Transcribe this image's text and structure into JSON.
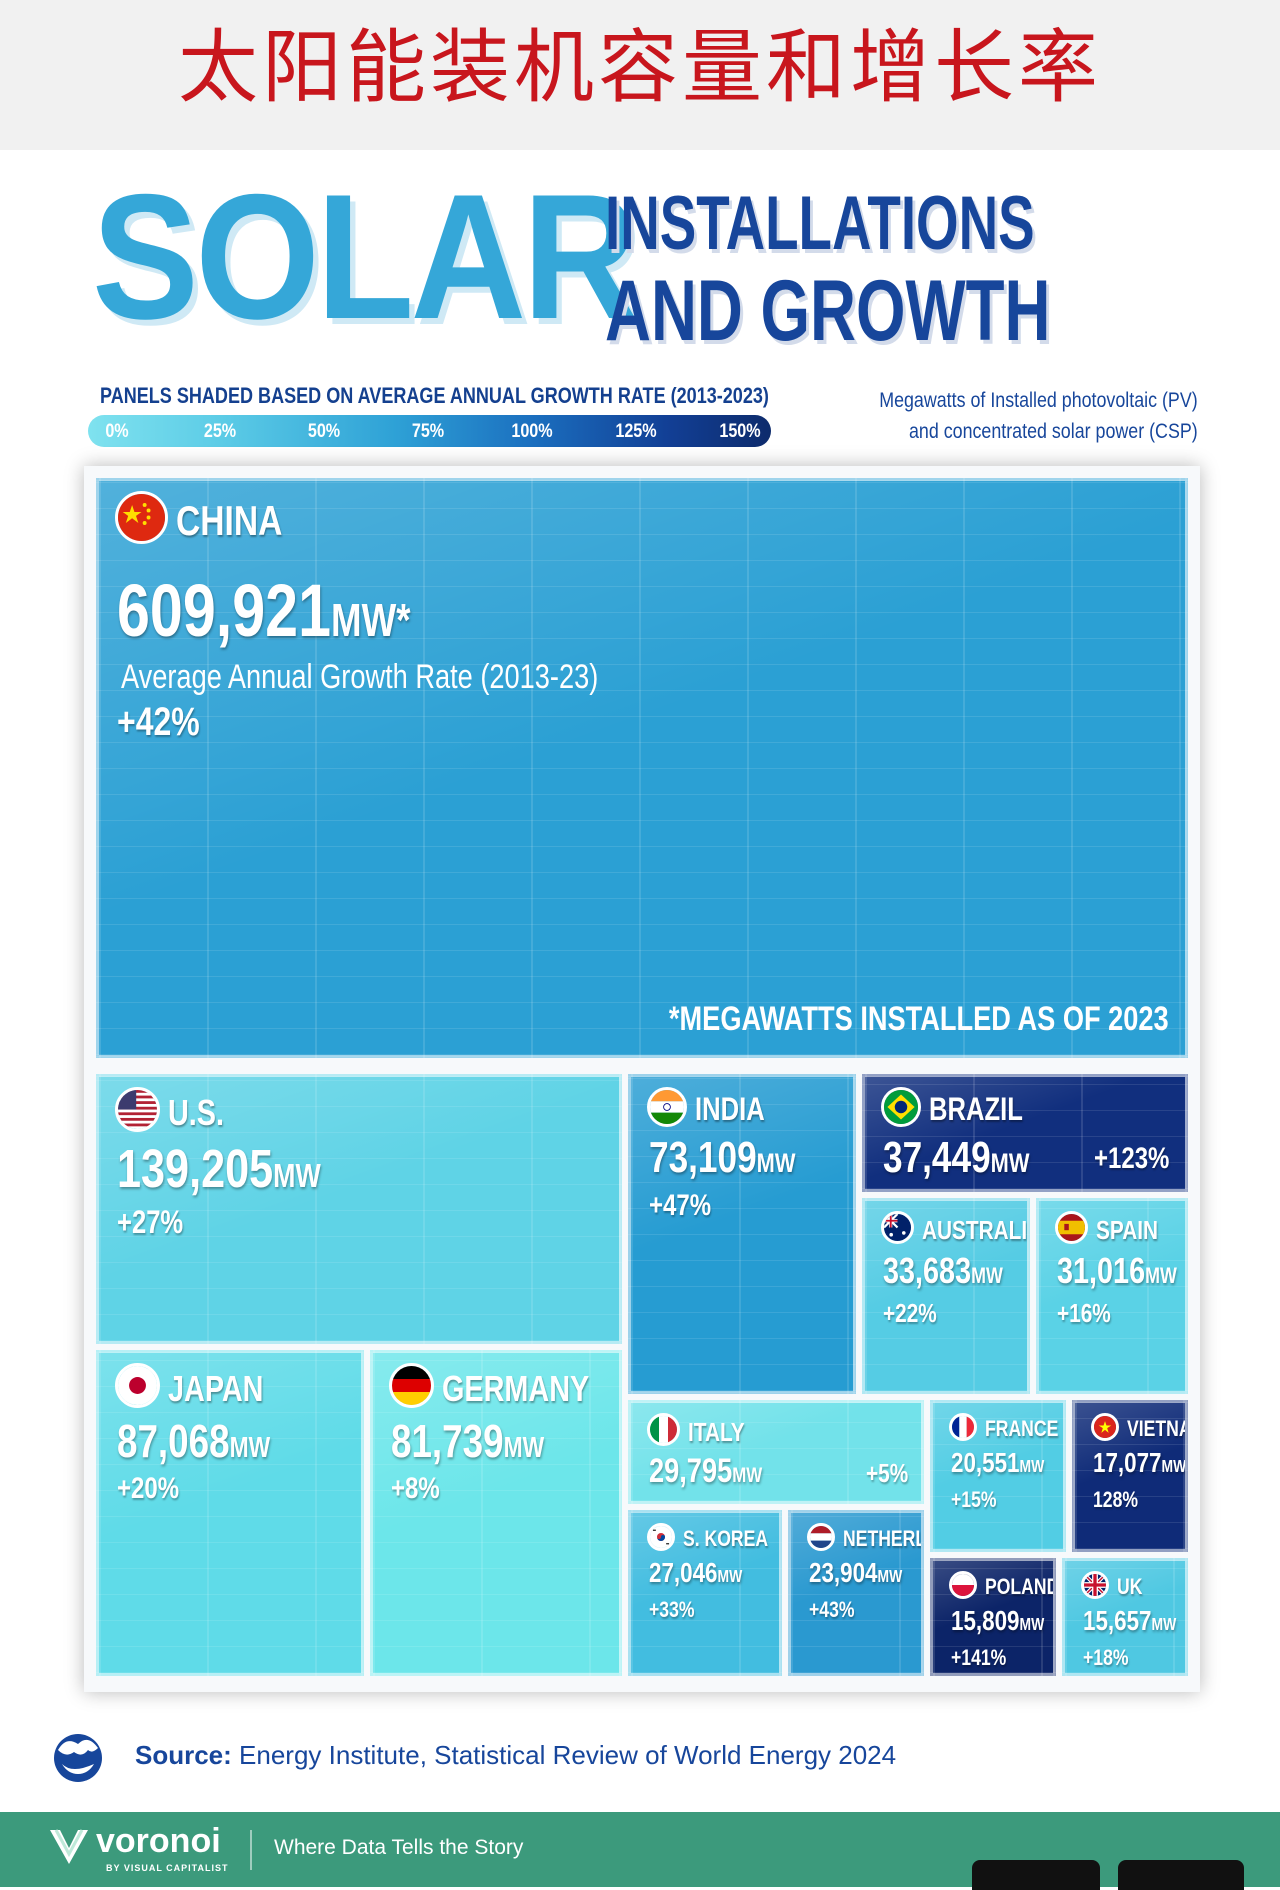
{
  "banner": {
    "title": "太阳能装机容量和增长率"
  },
  "header": {
    "solar": "SOLAR",
    "line1": "INSTALLATIONS",
    "line2": "AND GROWTH"
  },
  "legend": {
    "caption": "PANELS SHADED BASED ON AVERAGE ANNUAL GROWTH RATE (2013-2023)",
    "ticks": [
      "0%",
      "25%",
      "50%",
      "75%",
      "100%",
      "125%",
      "150%"
    ],
    "note_line1": "Megawatts of Installed photovoltaic (PV)",
    "note_line2": "and concentrated solar power (CSP)"
  },
  "chart_data": {
    "type": "treemap",
    "title": "SOLAR INSTALLATIONS AND GROWTH",
    "value_unit": "MW",
    "color_scale": {
      "label": "PANELS SHADED BASED ON AVERAGE ANNUAL GROWTH RATE (2013-2023)",
      "min": 0,
      "max": 150,
      "unit": "%"
    },
    "footnote": "*MEGAWATTS INSTALLED AS OF 2023",
    "china_growth_label": "Average Annual Growth Rate (2013-23)",
    "china_mw_suffix": "MW*",
    "series": [
      {
        "country": "CHINA",
        "mw": 609921,
        "mw_text": "609,921",
        "growth": 42,
        "growth_text": "+42%",
        "color": "#2ba0d4"
      },
      {
        "country": "U.S.",
        "mw": 139205,
        "mw_text": "139,205",
        "growth": 27,
        "growth_text": "+27%",
        "color": "#5fd3e6"
      },
      {
        "country": "JAPAN",
        "mw": 87068,
        "mw_text": "87,068",
        "growth": 20,
        "growth_text": "+20%",
        "color": "#5fdbe8"
      },
      {
        "country": "GERMANY",
        "mw": 81739,
        "mw_text": "81,739",
        "growth": 8,
        "growth_text": "+8%",
        "color": "#6ce6ea"
      },
      {
        "country": "INDIA",
        "mw": 73109,
        "mw_text": "73,109",
        "growth": 47,
        "growth_text": "+47%",
        "color": "#269cd2"
      },
      {
        "country": "BRAZIL",
        "mw": 37449,
        "mw_text": "37,449",
        "growth": 123,
        "growth_text": "+123%",
        "color": "#112f7e"
      },
      {
        "country": "AUSTRALIA",
        "mw": 33683,
        "mw_text": "33,683",
        "growth": 22,
        "growth_text": "+22%",
        "color": "#55cce4"
      },
      {
        "country": "SPAIN",
        "mw": 31016,
        "mw_text": "31,016",
        "growth": 16,
        "growth_text": "+16%",
        "color": "#5ad2e6"
      },
      {
        "country": "ITALY",
        "mw": 29795,
        "mw_text": "29,795",
        "growth": 5,
        "growth_text": "+5%",
        "color": "#72e2ea"
      },
      {
        "country": "FRANCE",
        "mw": 20551,
        "mw_text": "20,551",
        "growth": 15,
        "growth_text": "+15%",
        "color": "#52cde4"
      },
      {
        "country": "VIETNAM",
        "mw": 17077,
        "mw_text": "17,077",
        "growth": 128,
        "growth_text": "128%",
        "color": "#0f2b78"
      },
      {
        "country": "S. KOREA",
        "mw": 27046,
        "mw_text": "27,046",
        "growth": 33,
        "growth_text": "+33%",
        "color": "#42bde0"
      },
      {
        "country": "NETHERLANDS",
        "mw": 23904,
        "mw_text": "23,904",
        "growth": 43,
        "growth_text": "+43%",
        "color": "#2a99d0"
      },
      {
        "country": "POLAND",
        "mw": 15809,
        "mw_text": "15,809",
        "growth": 141,
        "growth_text": "+141%",
        "color": "#0c2468"
      },
      {
        "country": "UK",
        "mw": 15657,
        "mw_text": "15,657",
        "growth": 18,
        "growth_text": "+18%",
        "color": "#4fc8e2"
      }
    ]
  },
  "source": {
    "label": "Source:",
    "text": "Energy Institute, Statistical Review of World Energy 2024"
  },
  "footer": {
    "brand": "voronoi",
    "brand_sub": "BY VISUAL CAPITALIST",
    "tagline": "Where Data Tells the Story"
  },
  "colors": {
    "banner_red": "#c8161d",
    "navy": "#17469b",
    "solar_blue": "#35a7d8",
    "footer_green": "#3c9a7c"
  },
  "icons": [
    "voronoi-globe-icon",
    "voronoi-logo-icon"
  ]
}
